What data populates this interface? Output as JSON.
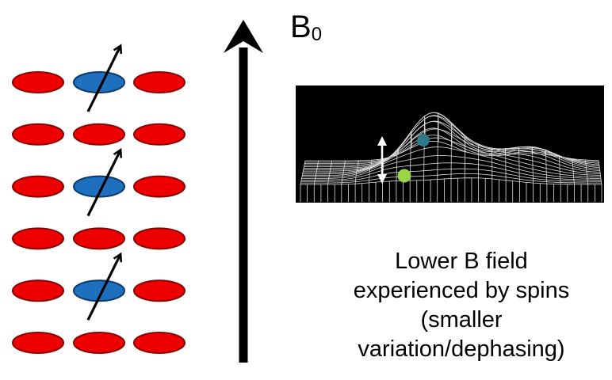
{
  "field": {
    "symbol": "B",
    "subscript": "0"
  },
  "lattice": {
    "rows": 6,
    "columns": 3,
    "spin_up_sites": [
      [
        0,
        1
      ],
      [
        2,
        1
      ],
      [
        4,
        1
      ]
    ],
    "colors": {
      "host": "#ee0000",
      "host_outline": "#880000",
      "spin": "#1f6fbf",
      "spin_outline": "#0a3a6a"
    }
  },
  "inset": {
    "background": "#000000",
    "mesh_color": "#dcdcdc",
    "marker_colors": {
      "upper": "#2e7a8a",
      "lower": "#9bd448"
    }
  },
  "caption": {
    "lines": [
      "Lower B field",
      "experienced by spins",
      "(smaller",
      "variation/dephasing)"
    ]
  }
}
